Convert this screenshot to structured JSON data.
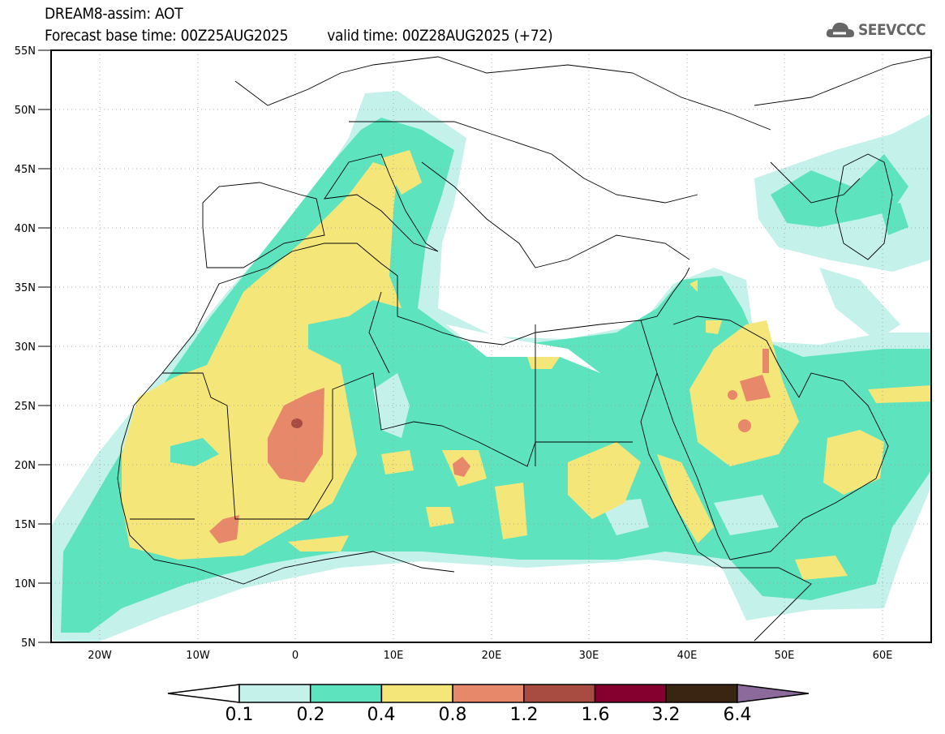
{
  "title": {
    "line1": "DREAM8-assim: AOT",
    "base_time": "Forecast base time: 00Z25AUG2025",
    "valid_time": "valid time: 00Z28AUG2025 (+72)"
  },
  "logo": {
    "text": "SEEVCCC",
    "icon": "cloud-logo-icon"
  },
  "map": {
    "lon_range": [
      -25,
      65
    ],
    "lat_range": [
      5,
      55
    ],
    "lat_labels": [
      "55N",
      "50N",
      "45N",
      "40N",
      "35N",
      "30N",
      "25N",
      "20N",
      "15N",
      "10N",
      "5N"
    ],
    "lon_labels": [
      "20W",
      "10W",
      "0",
      "10E",
      "20E",
      "30E",
      "40E",
      "50E",
      "60E"
    ]
  },
  "colorbar": {
    "labels": [
      "0.1",
      "0.2",
      "0.4",
      "0.8",
      "1.2",
      "1.6",
      "3.2",
      "6.4"
    ],
    "colors": [
      "#ffffff",
      "#c4f2ea",
      "#5ee3bf",
      "#f5e67a",
      "#e8886a",
      "#a84c42",
      "#85002e",
      "#3a2512",
      "#8c6a9c"
    ]
  }
}
